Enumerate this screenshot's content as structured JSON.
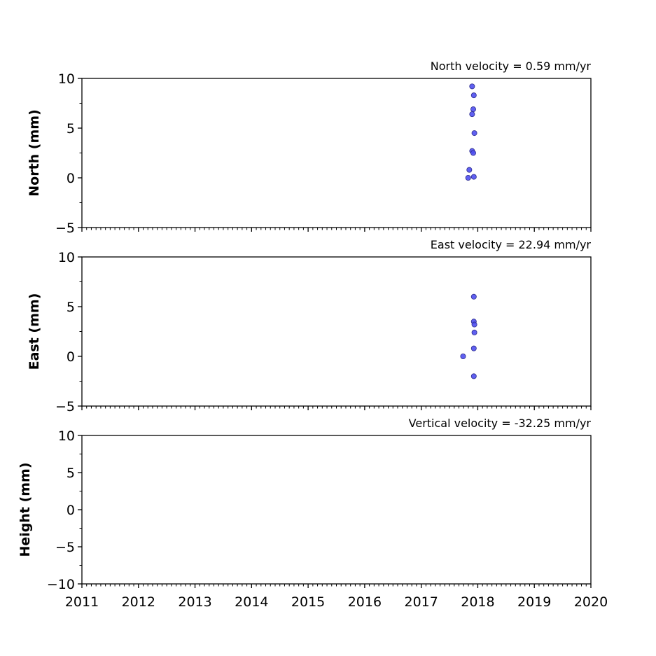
{
  "chart_data": [
    {
      "type": "scatter",
      "title": "North velocity = 0.59 mm/yr",
      "xlabel": "",
      "ylabel": "North (mm)",
      "xlim": [
        2011,
        2020
      ],
      "ylim": [
        -5,
        10
      ],
      "yticks": [
        -5,
        0,
        5,
        10
      ],
      "ytick_labels": [
        "−5",
        "0",
        "5",
        "10"
      ],
      "grid": false,
      "marker_color": "#4f4ff0",
      "marker_edge_color": "#2b2b8c",
      "x": [
        2017.9,
        2017.93,
        2017.92,
        2017.9,
        2017.94,
        2017.9,
        2017.92,
        2017.85,
        2017.83,
        2017.93
      ],
      "y": [
        9.2,
        8.3,
        6.9,
        6.4,
        4.5,
        2.7,
        2.5,
        0.8,
        0.0,
        0.1
      ]
    },
    {
      "type": "scatter",
      "title": "East velocity = 22.94 mm/yr",
      "xlabel": "",
      "ylabel": "East (mm)",
      "xlim": [
        2011,
        2020
      ],
      "ylim": [
        -5,
        10
      ],
      "yticks": [
        -5,
        0,
        5,
        10
      ],
      "ytick_labels": [
        "−5",
        "0",
        "5",
        "10"
      ],
      "grid": false,
      "marker_color": "#4f4ff0",
      "marker_edge_color": "#2b2b8c",
      "x": [
        2017.93,
        2017.93,
        2017.94,
        2017.94,
        2017.93,
        2017.74,
        2017.93
      ],
      "y": [
        6.0,
        3.5,
        3.2,
        2.4,
        0.8,
        0.0,
        -2.0
      ]
    },
    {
      "type": "scatter",
      "title": "Vertical velocity = -32.25 mm/yr",
      "xlabel": "",
      "ylabel": "Height (mm)",
      "xlim": [
        2011,
        2020
      ],
      "ylim": [
        -10,
        10
      ],
      "yticks": [
        -10,
        -5,
        0,
        5,
        10
      ],
      "ytick_labels": [
        "−10",
        "−5",
        "0",
        "5",
        "10"
      ],
      "xticks": [
        2011,
        2012,
        2013,
        2014,
        2015,
        2016,
        2017,
        2018,
        2019,
        2020
      ],
      "xtick_labels": [
        "2011",
        "2012",
        "2013",
        "2014",
        "2015",
        "2016",
        "2017",
        "2018",
        "2019",
        "2020"
      ],
      "grid": false,
      "marker_color": "#4f4ff0",
      "marker_edge_color": "#2b2b8c",
      "x": [],
      "y": []
    }
  ]
}
